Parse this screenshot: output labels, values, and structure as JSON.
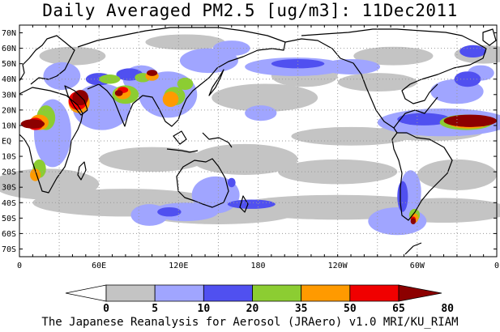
{
  "title": "Daily Averaged PM2.5 [ug/m3]: 11Dec2011",
  "footer": "The Japanese Reanalysis for Aerosol (JRAero) v1.0 MRI/KU_RIAM",
  "map": {
    "lat_range": [
      -75,
      75
    ],
    "lon_range": [
      0,
      360
    ],
    "grid": true,
    "lat_ticks": [
      "70N",
      "60N",
      "50N",
      "40N",
      "30N",
      "20N",
      "10N",
      "EQ",
      "10S",
      "20S",
      "30S",
      "40S",
      "50S",
      "60S",
      "70S"
    ],
    "lon_ticks": [
      "0",
      "60E",
      "120E",
      "180",
      "120W",
      "60W",
      "0"
    ]
  },
  "legend": {
    "levels": [
      "0",
      "5",
      "10",
      "20",
      "35",
      "50",
      "65",
      "80"
    ],
    "colors": [
      "#ffffff",
      "#c4c4c4",
      "#a0a5ff",
      "#5050f0",
      "#8ccd32",
      "#ff9a00",
      "#f00000",
      "#8c0000"
    ]
  }
}
